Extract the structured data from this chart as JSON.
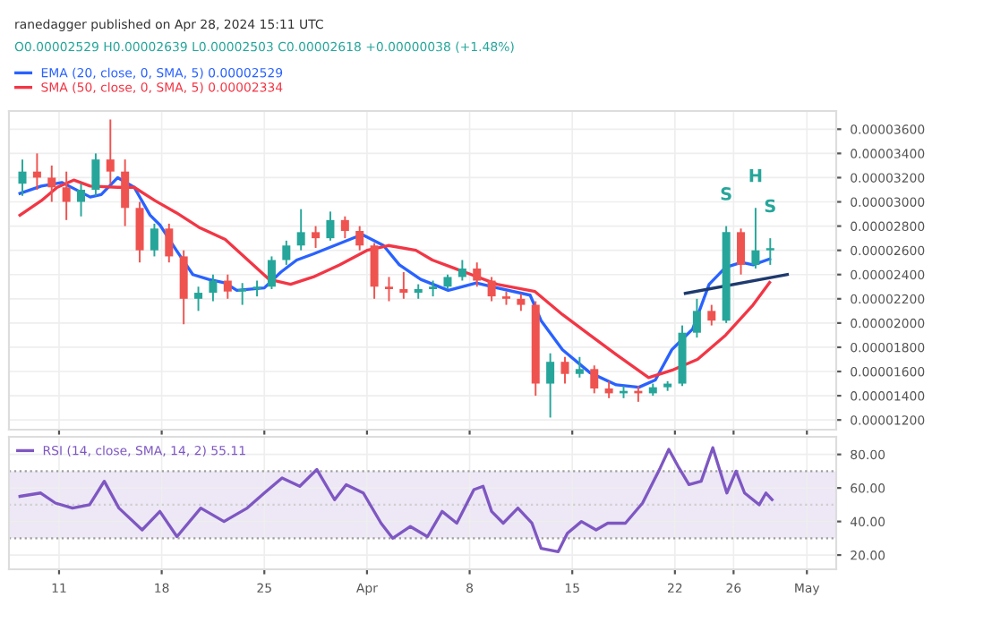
{
  "chart_data": [
    {
      "type": "candlestick",
      "title": "ranedagger published on Apr 28, 2024 15:11 UTC",
      "x": [
        "2024-03-08T12:00",
        "2024-03-09T12:00",
        "2024-03-10T12:00",
        "2024-03-11T12:00",
        "2024-03-12T12:00",
        "2024-03-13T12:00",
        "2024-03-14T12:00",
        "2024-03-15T12:00",
        "2024-03-16T12:00",
        "2024-03-17T12:00",
        "2024-03-18T12:00",
        "2024-03-19T12:00",
        "2024-03-20T12:00",
        "2024-03-21T12:00",
        "2024-03-22T12:00",
        "2024-03-23T12:00",
        "2024-03-24T12:00",
        "2024-03-25T12:00",
        "2024-03-26T12:00",
        "2024-03-27T12:00",
        "2024-03-28T12:00",
        "2024-03-29T12:00",
        "2024-03-30T12:00",
        "2024-03-31T12:00",
        "2024-04-01T12:00",
        "2024-04-02T12:00",
        "2024-04-03T12:00",
        "2024-04-04T12:00",
        "2024-04-05T12:00",
        "2024-04-06T12:00",
        "2024-04-07T12:00",
        "2024-04-08T12:00",
        "2024-04-09T12:00",
        "2024-04-10T12:00",
        "2024-04-11T12:00",
        "2024-04-12T12:00",
        "2024-04-13T12:00",
        "2024-04-14T12:00",
        "2024-04-15T12:00",
        "2024-04-16T12:00",
        "2024-04-17T12:00",
        "2024-04-18T12:00",
        "2024-04-19T12:00",
        "2024-04-20T12:00",
        "2024-04-21T12:00",
        "2024-04-22T12:00",
        "2024-04-23T12:00",
        "2024-04-24T12:00",
        "2024-04-25T12:00",
        "2024-04-26T12:00",
        "2024-04-27T12:00",
        "2024-04-28T12:00"
      ],
      "ohlc": [
        [
          3.15e-05,
          3.35e-05,
          3.05e-05,
          3.25e-05
        ],
        [
          3.25e-05,
          3.4e-05,
          3.1e-05,
          3.2e-05
        ],
        [
          3.2e-05,
          3.3e-05,
          3e-05,
          3.12e-05
        ],
        [
          3.12e-05,
          3.25e-05,
          2.85e-05,
          3e-05
        ],
        [
          3e-05,
          3.15e-05,
          2.88e-05,
          3.1e-05
        ],
        [
          3.1e-05,
          3.4e-05,
          3.05e-05,
          3.35e-05
        ],
        [
          3.35e-05,
          3.68e-05,
          3.15e-05,
          3.25e-05
        ],
        [
          3.25e-05,
          3.35e-05,
          2.8e-05,
          2.95e-05
        ],
        [
          2.95e-05,
          3e-05,
          2.5e-05,
          2.6e-05
        ],
        [
          2.6e-05,
          2.82e-05,
          2.55e-05,
          2.78e-05
        ],
        [
          2.78e-05,
          2.82e-05,
          2.5e-05,
          2.55e-05
        ],
        [
          2.55e-05,
          2.6e-05,
          1.99e-05,
          2.2e-05
        ],
        [
          2.2e-05,
          2.3e-05,
          2.1e-05,
          2.25e-05
        ],
        [
          2.25e-05,
          2.4e-05,
          2.18e-05,
          2.35e-05
        ],
        [
          2.35e-05,
          2.4e-05,
          2.2e-05,
          2.26e-05
        ],
        [
          2.26e-05,
          2.33e-05,
          2.15e-05,
          2.28e-05
        ],
        [
          2.28e-05,
          2.35e-05,
          2.22e-05,
          2.3e-05
        ],
        [
          2.3e-05,
          2.55e-05,
          2.28e-05,
          2.52e-05
        ],
        [
          2.52e-05,
          2.68e-05,
          2.48e-05,
          2.64e-05
        ],
        [
          2.64e-05,
          2.94e-05,
          2.6e-05,
          2.75e-05
        ],
        [
          2.75e-05,
          2.8e-05,
          2.62e-05,
          2.7e-05
        ],
        [
          2.7e-05,
          2.92e-05,
          2.68e-05,
          2.85e-05
        ],
        [
          2.85e-05,
          2.88e-05,
          2.7e-05,
          2.76e-05
        ],
        [
          2.76e-05,
          2.8e-05,
          2.6e-05,
          2.64e-05
        ],
        [
          2.64e-05,
          2.66e-05,
          2.2e-05,
          2.3e-05
        ],
        [
          2.3e-05,
          2.38e-05,
          2.18e-05,
          2.28e-05
        ],
        [
          2.28e-05,
          2.42e-05,
          2.2e-05,
          2.25e-05
        ],
        [
          2.25e-05,
          2.32e-05,
          2.2e-05,
          2.28e-05
        ],
        [
          2.28e-05,
          2.35e-05,
          2.22e-05,
          2.3e-05
        ],
        [
          2.3e-05,
          2.4e-05,
          2.28e-05,
          2.38e-05
        ],
        [
          2.38e-05,
          2.52e-05,
          2.35e-05,
          2.45e-05
        ],
        [
          2.45e-05,
          2.5e-05,
          2.3e-05,
          2.35e-05
        ],
        [
          2.35e-05,
          2.38e-05,
          2.18e-05,
          2.22e-05
        ],
        [
          2.22e-05,
          2.26e-05,
          2.15e-05,
          2.2e-05
        ],
        [
          2.2e-05,
          2.24e-05,
          2.1e-05,
          2.15e-05
        ],
        [
          2.15e-05,
          2.18e-05,
          1.4e-05,
          1.5e-05
        ],
        [
          1.5e-05,
          1.75e-05,
          1.22e-05,
          1.68e-05
        ],
        [
          1.68e-05,
          1.72e-05,
          1.5e-05,
          1.58e-05
        ],
        [
          1.58e-05,
          1.72e-05,
          1.55e-05,
          1.62e-05
        ],
        [
          1.62e-05,
          1.65e-05,
          1.42e-05,
          1.46e-05
        ],
        [
          1.46e-05,
          1.52e-05,
          1.38e-05,
          1.42e-05
        ],
        [
          1.42e-05,
          1.48e-05,
          1.38e-05,
          1.44e-05
        ],
        [
          1.44e-05,
          1.48e-05,
          1.35e-05,
          1.42e-05
        ],
        [
          1.42e-05,
          1.5e-05,
          1.4e-05,
          1.47e-05
        ],
        [
          1.47e-05,
          1.52e-05,
          1.44e-05,
          1.5e-05
        ],
        [
          1.5e-05,
          1.98e-05,
          1.48e-05,
          1.92e-05
        ],
        [
          1.92e-05,
          2.2e-05,
          1.88e-05,
          2.1e-05
        ],
        [
          2.1e-05,
          2.15e-05,
          1.98e-05,
          2.02e-05
        ],
        [
          2.02e-05,
          2.8e-05,
          2e-05,
          2.75e-05
        ],
        [
          2.75e-05,
          2.78e-05,
          2.4e-05,
          2.48e-05
        ],
        [
          2.48e-05,
          2.95e-05,
          2.45e-05,
          2.6e-05
        ],
        [
          2.6e-05,
          2.7e-05,
          2.48e-05,
          2.618e-05
        ]
      ],
      "colors": [
        "#26a69a",
        "#ef5350",
        "#ef5350",
        "#ef5350",
        "#26a69a",
        "#26a69a",
        "#ef5350",
        "#ef5350",
        "#ef5350",
        "#26a69a",
        "#ef5350",
        "#ef5350",
        "#26a69a",
        "#26a69a",
        "#ef5350",
        "#26a69a",
        "#26a69a",
        "#26a69a",
        "#26a69a",
        "#26a69a",
        "#ef5350",
        "#26a69a",
        "#ef5350",
        "#ef5350",
        "#ef5350",
        "#ef5350",
        "#ef5350",
        "#26a69a",
        "#26a69a",
        "#26a69a",
        "#26a69a",
        "#ef5350",
        "#ef5350",
        "#ef5350",
        "#ef5350",
        "#ef5350",
        "#26a69a",
        "#ef5350",
        "#26a69a",
        "#ef5350",
        "#ef5350",
        "#26a69a",
        "#ef5350",
        "#26a69a",
        "#26a69a",
        "#26a69a",
        "#26a69a",
        "#ef5350",
        "#26a69a",
        "#ef5350",
        "#26a69a",
        "#26a69a"
      ],
      "series": [
        {
          "type": "line",
          "name": "EMA (20, close, 0, SMA, 5) 0.00002529",
          "color": "#2962ff",
          "x": [
            "2024-03-08T08:00",
            "2024-03-09T19:00",
            "2024-03-11T05:00",
            "2024-03-13T03:00",
            "2024-03-13T21:00",
            "2024-03-15T00:00",
            "2024-03-16T03:00",
            "2024-03-17T05:00",
            "2024-03-17T21:00",
            "2024-03-19T00:00",
            "2024-03-20T03:00",
            "2024-03-21T05:00",
            "2024-03-22T08:00",
            "2024-03-23T03:00",
            "2024-03-25T00:00",
            "2024-03-26T03:00",
            "2024-03-27T05:00",
            "2024-03-28T08:00",
            "2024-03-29T19:00",
            "2024-03-31T16:00",
            "2024-04-02T03:00",
            "2024-04-03T05:00",
            "2024-04-04T16:00",
            "2024-04-06T13:00",
            "2024-04-08T11:00",
            "2024-04-09T21:00",
            "2024-04-12T03:00",
            "2024-04-12T21:00",
            "2024-04-14T08:00",
            "2024-04-16T05:00",
            "2024-04-18T00:00",
            "2024-04-19T13:00",
            "2024-04-20T16:00",
            "2024-04-21T19:00",
            "2024-04-23T05:00",
            "2024-04-24T08:00",
            "2024-04-25T11:00",
            "2024-04-26T13:00",
            "2024-04-27T08:00",
            "2024-04-28T11:00"
          ],
          "values": [
            3.07e-05,
            3.13e-05,
            3.16e-05,
            3.04e-05,
            3.06e-05,
            3.2e-05,
            3.12e-05,
            2.89e-05,
            2.81e-05,
            2.6e-05,
            2.4e-05,
            2.36e-05,
            2.33e-05,
            2.27e-05,
            2.29e-05,
            2.42e-05,
            2.52e-05,
            2.57e-05,
            2.64e-05,
            2.73e-05,
            2.64e-05,
            2.48e-05,
            2.36e-05,
            2.27e-05,
            2.33e-05,
            2.29e-05,
            2.23e-05,
            2.02e-05,
            1.78e-05,
            1.59e-05,
            1.49e-05,
            1.47e-05,
            1.53e-05,
            1.78e-05,
            1.95e-05,
            2.32e-05,
            2.46e-05,
            2.5e-05,
            2.48e-05,
            2.529e-05
          ]
        },
        {
          "type": "line",
          "name": "SMA (50, close, 0, SMA, 5) 0.00002334",
          "color": "#f23645",
          "x": [
            "2024-03-08T08:00",
            "2024-03-09T19:00",
            "2024-03-10T21:00",
            "2024-03-12T00:00",
            "2024-03-13T03:00",
            "2024-03-15T00:00",
            "2024-03-16T03:00",
            "2024-03-17T13:00",
            "2024-03-19T00:00",
            "2024-03-20T13:00",
            "2024-03-22T08:00",
            "2024-03-23T21:00",
            "2024-03-25T08:00",
            "2024-03-26T19:00",
            "2024-03-28T08:00",
            "2024-03-30T03:00",
            "2024-04-01T00:00",
            "2024-04-02T11:00",
            "2024-04-04T08:00",
            "2024-04-05T11:00",
            "2024-04-07T16:00",
            "2024-04-09T21:00",
            "2024-04-12T11:00",
            "2024-04-14T08:00",
            "2024-04-16T05:00",
            "2024-04-18T00:00",
            "2024-04-20T05:00",
            "2024-04-21T19:00",
            "2024-04-23T13:00",
            "2024-04-25T11:00",
            "2024-04-27T08:00",
            "2024-04-28T11:00"
          ],
          "values": [
            2.89e-05,
            3.01e-05,
            3.12e-05,
            3.18e-05,
            3.13e-05,
            3.12e-05,
            3.12e-05,
            3.01e-05,
            2.91e-05,
            2.79e-05,
            2.69e-05,
            2.52e-05,
            2.36e-05,
            2.32e-05,
            2.38e-05,
            2.48e-05,
            2.6e-05,
            2.64e-05,
            2.6e-05,
            2.52e-05,
            2.42e-05,
            2.32e-05,
            2.26e-05,
            2.07e-05,
            1.9e-05,
            1.74e-05,
            1.55e-05,
            1.61e-05,
            1.7e-05,
            1.9e-05,
            2.15e-05,
            2.334e-05
          ]
        },
        {
          "type": "line",
          "color": "#1e3a6e",
          "x": [
            "2024-04-22T17:00",
            "2024-04-29T16:00"
          ],
          "values": [
            2.245e-05,
            2.4e-05
          ]
        }
      ],
      "annotations": [
        "O0.00002529 H0.00002639 L0.00002503 C0.00002618 +0.00000038 (+1.48%)",
        {
          "text": "S",
          "x": "2024-04-25T12:00",
          "y": 2.8e-05
        },
        {
          "text": "H",
          "x": "2024-04-27T12:00",
          "y": 2.95e-05
        },
        {
          "text": "S",
          "x": "2024-04-28T12:00",
          "y": 2.7e-05
        }
      ],
      "xlim": [
        "2024-03-07T14:00",
        "2024-05-03T00:00"
      ],
      "xticks": [
        {
          "value": "2024-03-11",
          "label": null
        },
        {
          "value": "2024-03-18",
          "label": null
        },
        {
          "value": "2024-03-25",
          "label": null
        },
        {
          "value": "2024-04-01",
          "label": null
        },
        {
          "value": "2024-04-08",
          "label": null
        },
        {
          "value": "2024-04-15",
          "label": null
        },
        {
          "value": "2024-04-22",
          "label": null
        },
        {
          "value": "2024-04-26",
          "label": null
        },
        {
          "value": "2024-05-01",
          "label": null
        }
      ],
      "ylim": [
        1.12e-05,
        3.75e-05
      ],
      "yticks": [
        {
          "value": 1.2e-05,
          "label": "0.00001200"
        },
        {
          "value": 1.4e-05,
          "label": "0.00001400"
        },
        {
          "value": 1.6e-05,
          "label": "0.00001600"
        },
        {
          "value": 1.8e-05,
          "label": "0.00001800"
        },
        {
          "value": 2e-05,
          "label": "0.00002000"
        },
        {
          "value": 2.2e-05,
          "label": "0.00002200"
        },
        {
          "value": 2.4e-05,
          "label": "0.00002400"
        },
        {
          "value": 2.6e-05,
          "label": "0.00002600"
        },
        {
          "value": 2.8e-05,
          "label": "0.00002800"
        },
        {
          "value": 3e-05,
          "label": "0.00003000"
        },
        {
          "value": 3.2e-05,
          "label": "0.00003200"
        },
        {
          "value": 3.4e-05,
          "label": "0.00003400"
        },
        {
          "value": 3.6e-05,
          "label": "0.00003600"
        }
      ],
      "grid": true,
      "legend": "top left",
      "tick_labels": "y"
    },
    {
      "type": "line",
      "series": [
        {
          "name": "RSI (14, close, SMA, 14, 2) 55.11",
          "color": "#7e57c2",
          "x": [
            "2024-03-08T08:00",
            "2024-03-09T18:00",
            "2024-03-10T18:00",
            "2024-03-11T22:00",
            "2024-03-13T02:00",
            "2024-03-14T02:00",
            "2024-03-15T02:00",
            "2024-03-16T16:00",
            "2024-03-17T21:00",
            "2024-03-19T01:00",
            "2024-03-20T16:00",
            "2024-03-22T06:00",
            "2024-03-23T20:00",
            "2024-03-25T00:00",
            "2024-03-26T05:00",
            "2024-03-27T10:00",
            "2024-03-28T14:00",
            "2024-03-29T19:00",
            "2024-03-30T14:00",
            "2024-03-31T18:00",
            "2024-04-01T23:00",
            "2024-04-02T18:00",
            "2024-04-03T23:00",
            "2024-04-05T03:00",
            "2024-04-06T03:00",
            "2024-04-07T03:00",
            "2024-04-08T07:00",
            "2024-04-08T22:00",
            "2024-04-09T12:00",
            "2024-04-10T07:00",
            "2024-04-11T07:00",
            "2024-04-12T06:00",
            "2024-04-12T21:00",
            "2024-04-14T01:00",
            "2024-04-14T16:00",
            "2024-04-15T15:00",
            "2024-04-16T15:00",
            "2024-04-17T10:00",
            "2024-04-18T15:00",
            "2024-04-19T19:00",
            "2024-04-21T00:00",
            "2024-04-21T14:00",
            "2024-04-22T05:00",
            "2024-04-22T23:00",
            "2024-04-23T19:00",
            "2024-04-24T14:00",
            "2024-04-25T13:00",
            "2024-04-26T04:00",
            "2024-04-26T18:00",
            "2024-04-27T18:00",
            "2024-04-28T05:00",
            "2024-04-28T15:00"
          ],
          "values": [
            55,
            57,
            51,
            48,
            50,
            64,
            48,
            35,
            46,
            31,
            48,
            40,
            48,
            57,
            66,
            61,
            71,
            53,
            62,
            57,
            39,
            30,
            37,
            31,
            46,
            39,
            59,
            61,
            46,
            39,
            48,
            39,
            24,
            22,
            33,
            40,
            35,
            39,
            39,
            51,
            72,
            83,
            73,
            62,
            64,
            84,
            57,
            70,
            57,
            50,
            57,
            53
          ]
        }
      ],
      "ref_lines": [
        {
          "axis": "y",
          "value": 70,
          "color": "#9e9e9e",
          "line_style": "dotted"
        },
        {
          "axis": "y",
          "value": 50,
          "color": "#cfcfcf",
          "line_style": "dotted"
        },
        {
          "axis": "y",
          "value": 30,
          "color": "#9e9e9e",
          "line_style": "dotted"
        }
      ],
      "bands": [
        {
          "axis": "y",
          "from": 30,
          "to": 70,
          "color": "#ede7f6"
        }
      ],
      "xlim": [
        "2024-03-07T14:00",
        "2024-05-03T00:00"
      ],
      "xticks": [
        {
          "value": "2024-03-11",
          "label": "11"
        },
        {
          "value": "2024-03-18",
          "label": "18"
        },
        {
          "value": "2024-03-25",
          "label": "25"
        },
        {
          "value": "2024-04-01",
          "label": "Apr"
        },
        {
          "value": "2024-04-08",
          "label": "8"
        },
        {
          "value": "2024-04-15",
          "label": "15"
        },
        {
          "value": "2024-04-22",
          "label": "22"
        },
        {
          "value": "2024-04-26",
          "label": "26"
        },
        {
          "value": "2024-05-01",
          "label": "May"
        }
      ],
      "ylim": [
        11.5,
        90.5
      ],
      "yticks": [
        {
          "value": 20,
          "label": "20.00"
        },
        {
          "value": 40,
          "label": "40.00"
        },
        {
          "value": 60,
          "label": "60.00"
        },
        {
          "value": 80,
          "label": "80.00"
        }
      ],
      "grid": true,
      "legend": "top left"
    }
  ]
}
